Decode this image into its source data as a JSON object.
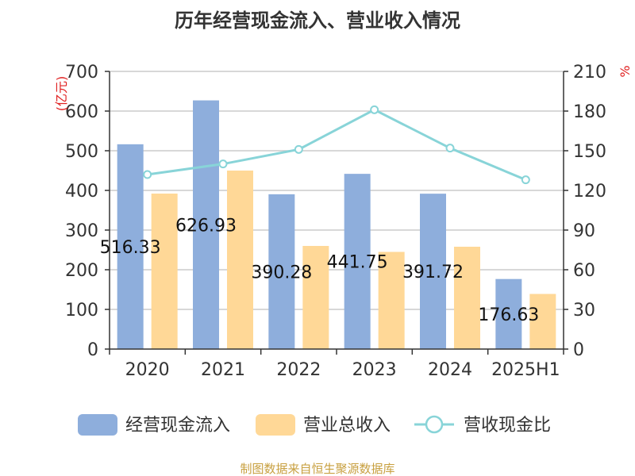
{
  "chart_data": {
    "type": "bar",
    "title": "历年经营现金流入、营业收入情况",
    "categories": [
      "2020",
      "2021",
      "2022",
      "2023",
      "2024",
      "2025H1"
    ],
    "series": [
      {
        "name": "经营现金流入",
        "type": "bar",
        "axis": "left",
        "color": "#8eaedc",
        "values": [
          516.33,
          626.93,
          390.28,
          441.75,
          391.72,
          176.63
        ],
        "labels": [
          "516.33",
          "626.93",
          "390.28",
          "441.75",
          "391.72",
          "176.63"
        ]
      },
      {
        "name": "营业总收入",
        "type": "bar",
        "axis": "left",
        "color": "#ffd897",
        "values": [
          392,
          450,
          260,
          245,
          258,
          139
        ]
      },
      {
        "name": "营收现金比",
        "type": "line",
        "axis": "right",
        "color": "#88d4d8",
        "values": [
          132,
          140,
          151,
          181,
          152,
          128
        ]
      }
    ],
    "y_left": {
      "unit": "(亿元)",
      "ylim": [
        0,
        700
      ],
      "ticks": [
        "0",
        "100",
        "200",
        "300",
        "400",
        "500",
        "600",
        "700"
      ]
    },
    "y_right": {
      "unit": "%",
      "ylim": [
        0,
        210
      ],
      "ticks": [
        "0",
        "30",
        "60",
        "90",
        "120",
        "150",
        "180",
        "210"
      ]
    },
    "grid": true,
    "legend_position": "bottom"
  },
  "footer": {
    "source": "制图数据来自恒生聚源数据库"
  }
}
